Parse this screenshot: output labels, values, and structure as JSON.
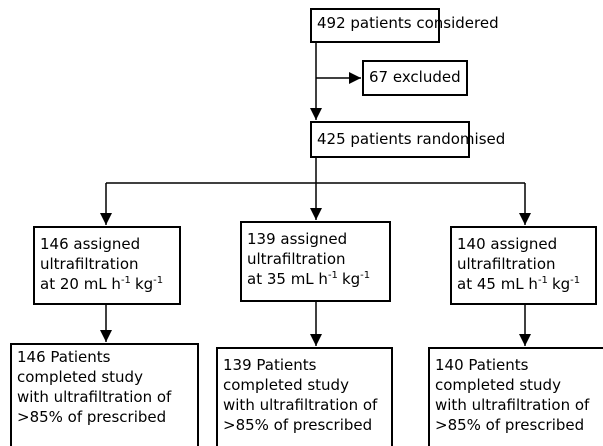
{
  "nodes": [
    {
      "label": "492 patients considered"
    },
    {
      "label": "67 excluded"
    },
    {
      "label": "425 patients randomised"
    },
    {
      "lines": [
        "146 assigned",
        "ultrafiltration"
      ],
      "rate": [
        "at 20 mL h",
        "-1",
        "kg",
        "-1"
      ]
    },
    {
      "lines": [
        "139 assigned",
        "ultrafiltration"
      ],
      "rate": [
        "at 35 mL h",
        "-1",
        "kg",
        "-1"
      ]
    },
    {
      "lines": [
        "140 assigned",
        "ultrafiltration"
      ],
      "rate": [
        "at 45 mL h",
        "-1",
        "kg",
        "-1"
      ]
    },
    {
      "lines": [
        "146 Patients",
        "completed study",
        "with ultrafiltration of",
        ">85% of prescribed"
      ]
    },
    {
      "lines": [
        "139 Patients",
        "completed study",
        "with ultrafiltration of",
        ">85% of prescribed"
      ]
    },
    {
      "lines": [
        "140 Patients",
        "completed study",
        "with ultrafiltration of",
        ">85% of prescribed"
      ]
    }
  ]
}
